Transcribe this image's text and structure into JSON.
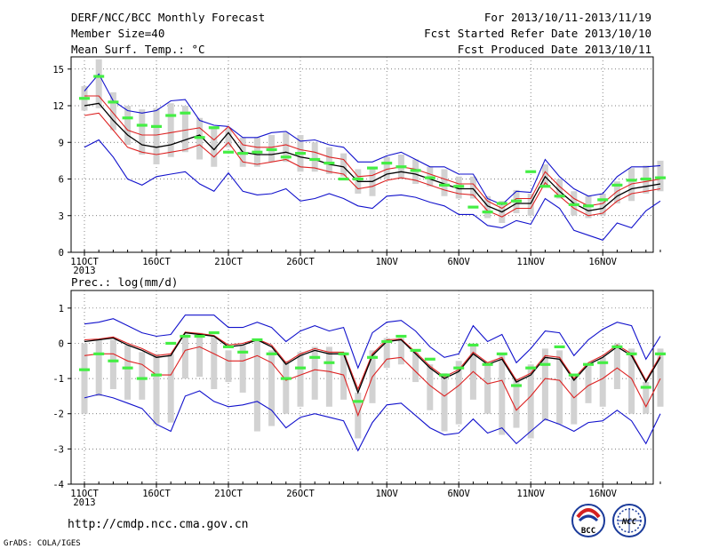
{
  "header": {
    "left": [
      "DERF/NCC/BCC Monthly Forecast",
      "Member Size=40",
      "Mean Surf. Temp.: °C"
    ],
    "right": [
      "For 2013/10/11-2013/11/19",
      "Fcst Started Refer Date 2013/10/10",
      "Fcst Produced Date 2013/10/11"
    ]
  },
  "footer": {
    "url": "http://cmdp.ncc.cma.gov.cn",
    "grads": "GrADS: COLA/IGES",
    "logo_bcc": "BCC",
    "logo_ncc": "NCC"
  },
  "colors": {
    "box": "#d2d2d2",
    "median": "#44ee44",
    "mean": "#000000",
    "ci": "#dd2222",
    "range": "#1111cc",
    "grid": "#555555"
  },
  "chart_data": [
    {
      "type": "line",
      "title": "Mean Surf. Temp.: °C",
      "ylim": [
        0,
        16
      ],
      "yticks": [
        0,
        3,
        6,
        9,
        12,
        15
      ],
      "x_start": "2013-10-11",
      "days": 40,
      "xtick_labels": [
        {
          "day": 0,
          "label": "11OCT"
        },
        {
          "day": 5,
          "label": "16OCT"
        },
        {
          "day": 10,
          "label": "21OCT"
        },
        {
          "day": 15,
          "label": "26OCT"
        },
        {
          "day": 21,
          "label": "1NOV"
        },
        {
          "day": 26,
          "label": "6NOV"
        },
        {
          "day": 31,
          "label": "11NOV"
        },
        {
          "day": 36,
          "label": "16NOV"
        }
      ],
      "year_label": "2013",
      "grid": true,
      "series": [
        {
          "name": "ensemble_mean",
          "values": [
            12.0,
            12.2,
            10.8,
            9.6,
            8.8,
            8.6,
            8.8,
            9.2,
            9.6,
            8.4,
            9.8,
            8.2,
            8.0,
            8.0,
            8.2,
            7.8,
            7.6,
            7.2,
            7.0,
            5.8,
            5.8,
            6.4,
            6.6,
            6.4,
            6.0,
            5.6,
            5.2,
            5.2,
            3.8,
            3.3,
            4.0,
            4.0,
            6.2,
            5.0,
            4.0,
            3.4,
            3.6,
            4.6,
            5.2,
            5.4,
            5.6
          ]
        },
        {
          "name": "ci_upper",
          "values": [
            12.8,
            12.8,
            11.4,
            10.0,
            9.6,
            9.6,
            9.8,
            10.0,
            10.2,
            9.2,
            10.3,
            8.8,
            8.6,
            8.6,
            8.8,
            8.4,
            8.2,
            7.8,
            7.6,
            6.2,
            6.3,
            6.8,
            7.0,
            6.8,
            6.4,
            6.0,
            5.6,
            5.6,
            4.2,
            3.6,
            4.4,
            4.4,
            6.6,
            5.4,
            4.4,
            3.8,
            4.0,
            5.0,
            5.6,
            5.8,
            6.0
          ]
        },
        {
          "name": "ci_lower",
          "values": [
            11.2,
            11.4,
            10.0,
            8.6,
            8.2,
            8.0,
            8.2,
            8.4,
            8.8,
            7.8,
            9.0,
            7.4,
            7.2,
            7.4,
            7.6,
            7.0,
            6.9,
            6.6,
            6.4,
            5.2,
            5.4,
            5.9,
            6.1,
            5.9,
            5.5,
            5.1,
            4.8,
            4.7,
            3.4,
            2.9,
            3.6,
            3.6,
            5.7,
            4.6,
            3.6,
            3.0,
            3.2,
            4.2,
            4.8,
            5.0,
            5.2
          ]
        },
        {
          "name": "max",
          "values": [
            13.2,
            14.6,
            12.4,
            11.6,
            11.4,
            11.6,
            12.4,
            12.5,
            10.8,
            10.4,
            10.3,
            9.4,
            9.4,
            9.8,
            9.9,
            9.1,
            9.2,
            8.8,
            8.6,
            7.4,
            7.4,
            7.9,
            8.2,
            7.6,
            7.0,
            7.0,
            6.4,
            6.4,
            4.4,
            3.9,
            5.0,
            4.9,
            7.6,
            6.2,
            5.2,
            4.6,
            4.8,
            6.2,
            7.0,
            7.0,
            7.1
          ]
        },
        {
          "name": "min",
          "values": [
            8.6,
            9.2,
            7.8,
            6.0,
            5.5,
            6.2,
            6.4,
            6.6,
            5.6,
            5.0,
            6.5,
            5.0,
            4.7,
            4.8,
            5.2,
            4.2,
            4.4,
            4.8,
            4.4,
            3.8,
            3.6,
            4.6,
            4.7,
            4.5,
            4.1,
            3.8,
            3.1,
            3.1,
            2.2,
            2.0,
            2.6,
            2.3,
            4.4,
            3.6,
            1.8,
            1.4,
            1.0,
            2.4,
            2.0,
            3.4,
            4.2
          ]
        },
        {
          "name": "box_top",
          "values": [
            13.6,
            15.8,
            13.1,
            12.0,
            11.7,
            11.8,
            12.2,
            12.0,
            11.0,
            10.2,
            10.1,
            9.4,
            9.4,
            9.6,
            9.8,
            9.6,
            9.0,
            8.6,
            8.1,
            6.8,
            6.8,
            7.8,
            8.0,
            7.6,
            7.0,
            6.8,
            6.2,
            6.2,
            4.6,
            4.2,
            5.1,
            4.8,
            7.2,
            6.0,
            5.0,
            4.6,
            4.8,
            5.8,
            6.9,
            7.1,
            7.5
          ]
        },
        {
          "name": "box_bottom",
          "values": [
            11.6,
            11.8,
            10.0,
            8.8,
            8.0,
            7.2,
            7.8,
            8.2,
            7.6,
            7.0,
            8.6,
            7.0,
            7.0,
            7.4,
            7.4,
            6.6,
            6.6,
            6.4,
            6.2,
            4.8,
            4.6,
            6.0,
            6.0,
            5.6,
            5.4,
            4.6,
            4.4,
            4.4,
            2.8,
            2.4,
            3.2,
            3.0,
            5.4,
            4.4,
            3.0,
            2.8,
            3.0,
            4.0,
            4.2,
            4.8,
            5.0
          ]
        },
        {
          "name": "median",
          "values": [
            12.6,
            14.4,
            12.3,
            11.0,
            10.4,
            10.3,
            11.2,
            11.4,
            9.4,
            10.2,
            8.2,
            8.1,
            8.2,
            8.4,
            7.8,
            8.1,
            7.6,
            7.3,
            6.0,
            6.0,
            6.9,
            7.3,
            7.0,
            6.7,
            6.1,
            5.5,
            5.4,
            3.7,
            3.3,
            4.0,
            4.2,
            6.6,
            5.4,
            4.6,
            3.9,
            3.8,
            4.3,
            5.5,
            5.9,
            6.0,
            6.1
          ]
        }
      ]
    },
    {
      "type": "line",
      "title": "Prec.: log(mm/d)",
      "ylim": [
        -4,
        1.5
      ],
      "yticks": [
        -4,
        -3,
        -2,
        -1,
        0,
        1
      ],
      "x_start": "2013-10-11",
      "days": 40,
      "xtick_labels": [
        {
          "day": 0,
          "label": "11OCT"
        },
        {
          "day": 5,
          "label": "16OCT"
        },
        {
          "day": 10,
          "label": "21OCT"
        },
        {
          "day": 15,
          "label": "26OCT"
        },
        {
          "day": 21,
          "label": "1NOV"
        },
        {
          "day": 26,
          "label": "6NOV"
        },
        {
          "day": 31,
          "label": "11NOV"
        },
        {
          "day": 36,
          "label": "16NOV"
        }
      ],
      "year_label": "2013",
      "grid": true,
      "series": [
        {
          "name": "ensemble_mean",
          "values": [
            0.05,
            0.1,
            0.15,
            -0.05,
            -0.2,
            -0.4,
            -0.35,
            0.3,
            0.25,
            0.2,
            -0.1,
            -0.05,
            0.1,
            -0.1,
            -0.6,
            -0.35,
            -0.2,
            -0.3,
            -0.3,
            -1.4,
            -0.35,
            0.05,
            0.1,
            -0.3,
            -0.7,
            -1.0,
            -0.8,
            -0.3,
            -0.6,
            -0.45,
            -1.1,
            -0.9,
            -0.4,
            -0.45,
            -1.05,
            -0.6,
            -0.4,
            -0.1,
            -0.35,
            -1.1,
            -0.4
          ]
        },
        {
          "name": "ci_upper",
          "values": [
            0.1,
            0.12,
            0.18,
            0.0,
            -0.15,
            -0.35,
            -0.3,
            0.32,
            0.28,
            0.22,
            -0.05,
            0.0,
            0.12,
            -0.05,
            -0.55,
            -0.3,
            -0.15,
            -0.25,
            -0.25,
            -1.3,
            -0.3,
            0.1,
            0.12,
            -0.25,
            -0.65,
            -0.95,
            -0.75,
            -0.25,
            -0.55,
            -0.4,
            -1.05,
            -0.85,
            -0.35,
            -0.4,
            -1.0,
            -0.55,
            -0.35,
            -0.05,
            -0.3,
            -1.05,
            -0.35
          ]
        },
        {
          "name": "ci_lower",
          "values": [
            -0.35,
            -0.3,
            -0.3,
            -0.5,
            -0.6,
            -0.9,
            -0.9,
            -0.2,
            -0.1,
            -0.3,
            -0.5,
            -0.5,
            -0.35,
            -0.55,
            -1.05,
            -0.9,
            -0.75,
            -0.8,
            -0.9,
            -2.05,
            -0.95,
            -0.45,
            -0.4,
            -0.8,
            -1.2,
            -1.5,
            -1.2,
            -0.8,
            -1.15,
            -1.05,
            -1.9,
            -1.5,
            -1.0,
            -1.05,
            -1.55,
            -1.2,
            -1.0,
            -0.7,
            -1.0,
            -1.8,
            -1.0
          ]
        },
        {
          "name": "max",
          "values": [
            0.55,
            0.6,
            0.7,
            0.5,
            0.3,
            0.2,
            0.25,
            0.8,
            0.8,
            0.8,
            0.45,
            0.45,
            0.6,
            0.45,
            0.05,
            0.35,
            0.5,
            0.35,
            0.45,
            -0.7,
            0.3,
            0.6,
            0.65,
            0.35,
            -0.1,
            -0.4,
            -0.3,
            0.5,
            0.05,
            0.25,
            -0.55,
            -0.15,
            0.35,
            0.3,
            -0.35,
            0.1,
            0.4,
            0.6,
            0.5,
            -0.45,
            0.2
          ]
        },
        {
          "name": "min",
          "values": [
            -1.55,
            -1.45,
            -1.55,
            -1.7,
            -1.85,
            -2.3,
            -2.5,
            -1.5,
            -1.35,
            -1.65,
            -1.8,
            -1.75,
            -1.65,
            -1.9,
            -2.4,
            -2.1,
            -2.0,
            -2.1,
            -2.2,
            -3.05,
            -2.25,
            -1.75,
            -1.7,
            -2.05,
            -2.4,
            -2.6,
            -2.55,
            -2.15,
            -2.55,
            -2.4,
            -2.85,
            -2.5,
            -2.15,
            -2.3,
            -2.5,
            -2.25,
            -2.2,
            -1.9,
            -2.2,
            -2.85,
            -2.0
          ]
        },
        {
          "name": "box_top",
          "values": [
            0.0,
            0.1,
            0.1,
            -0.05,
            -0.25,
            -0.3,
            -0.3,
            0.25,
            0.3,
            0.2,
            -0.2,
            -0.05,
            0.1,
            -0.2,
            -0.5,
            -0.25,
            -0.1,
            -0.1,
            -0.25,
            -1.4,
            -0.2,
            0.15,
            0.15,
            -0.25,
            -0.6,
            -0.85,
            -0.5,
            -0.05,
            -0.6,
            -0.3,
            -1.0,
            -0.6,
            -0.15,
            -0.2,
            -1.0,
            -0.65,
            -0.4,
            0.0,
            -0.15,
            -1.1,
            -0.15
          ]
        },
        {
          "name": "box_bottom",
          "values": [
            -2.0,
            -1.5,
            -1.3,
            -1.6,
            -1.6,
            -2.3,
            -2.25,
            -1.0,
            -0.95,
            -1.3,
            -1.1,
            -1.4,
            -2.5,
            -2.35,
            -2.0,
            -1.8,
            -1.6,
            -1.8,
            -1.6,
            -2.7,
            -1.7,
            -0.7,
            -0.6,
            -1.1,
            -1.9,
            -2.5,
            -2.3,
            -1.6,
            -2.0,
            -2.6,
            -2.4,
            -2.7,
            -2.2,
            -2.3,
            -2.3,
            -1.7,
            -1.8,
            -1.3,
            -2.0,
            -2.0,
            -1.8
          ]
        },
        {
          "name": "median",
          "values": [
            -0.75,
            -0.3,
            -0.5,
            -0.7,
            -1.0,
            -0.9,
            0.0,
            0.2,
            0.2,
            0.3,
            -0.1,
            -0.25,
            0.1,
            -0.3,
            -1.0,
            -0.7,
            -0.4,
            -0.55,
            -0.3,
            -1.65,
            -0.4,
            0.05,
            0.2,
            -0.2,
            -0.45,
            -0.9,
            -0.7,
            -0.05,
            -0.6,
            -0.3,
            -1.2,
            -0.7,
            -0.6,
            -0.1,
            -0.9,
            -0.6,
            -0.55,
            -0.1,
            -0.3,
            -1.25,
            -0.3
          ]
        }
      ]
    }
  ]
}
